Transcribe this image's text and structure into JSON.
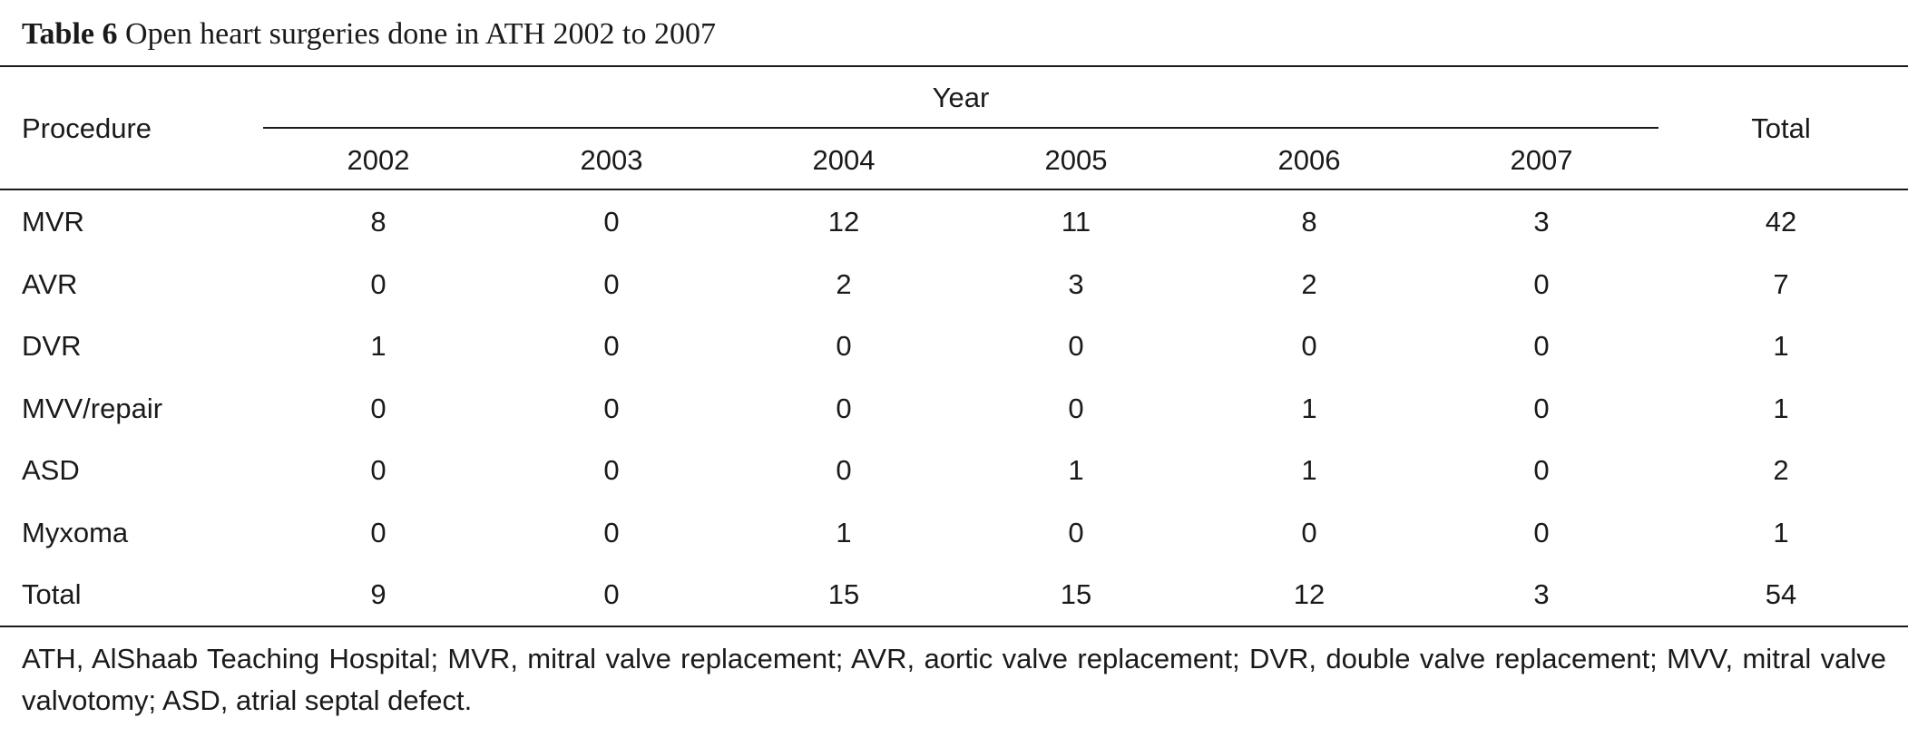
{
  "caption": {
    "label": "Table 6",
    "text": "Open heart surgeries done in ATH 2002 to 2007"
  },
  "header": {
    "procedure": "Procedure",
    "year_group": "Year",
    "years": [
      "2002",
      "2003",
      "2004",
      "2005",
      "2006",
      "2007"
    ],
    "total": "Total"
  },
  "rows": [
    {
      "procedure": "MVR",
      "values": [
        "8",
        "0",
        "12",
        "11",
        "8",
        "3"
      ],
      "total": "42"
    },
    {
      "procedure": "AVR",
      "values": [
        "0",
        "0",
        "2",
        "3",
        "2",
        "0"
      ],
      "total": "7"
    },
    {
      "procedure": "DVR",
      "values": [
        "1",
        "0",
        "0",
        "0",
        "0",
        "0"
      ],
      "total": "1"
    },
    {
      "procedure": "MVV/repair",
      "values": [
        "0",
        "0",
        "0",
        "0",
        "1",
        "0"
      ],
      "total": "1"
    },
    {
      "procedure": "ASD",
      "values": [
        "0",
        "0",
        "0",
        "1",
        "1",
        "0"
      ],
      "total": "2"
    },
    {
      "procedure": "Myxoma",
      "values": [
        "0",
        "0",
        "1",
        "0",
        "0",
        "0"
      ],
      "total": "1"
    },
    {
      "procedure": "Total",
      "values": [
        "9",
        "0",
        "15",
        "15",
        "12",
        "3"
      ],
      "total": "54"
    }
  ],
  "footnote": "ATH, AlShaab Teaching Hospital; MVR, mitral valve replacement; AVR, aortic valve replacement; DVR, double valve replacement; MVV, mitral valve valvotomy; ASD, atrial septal defect."
}
